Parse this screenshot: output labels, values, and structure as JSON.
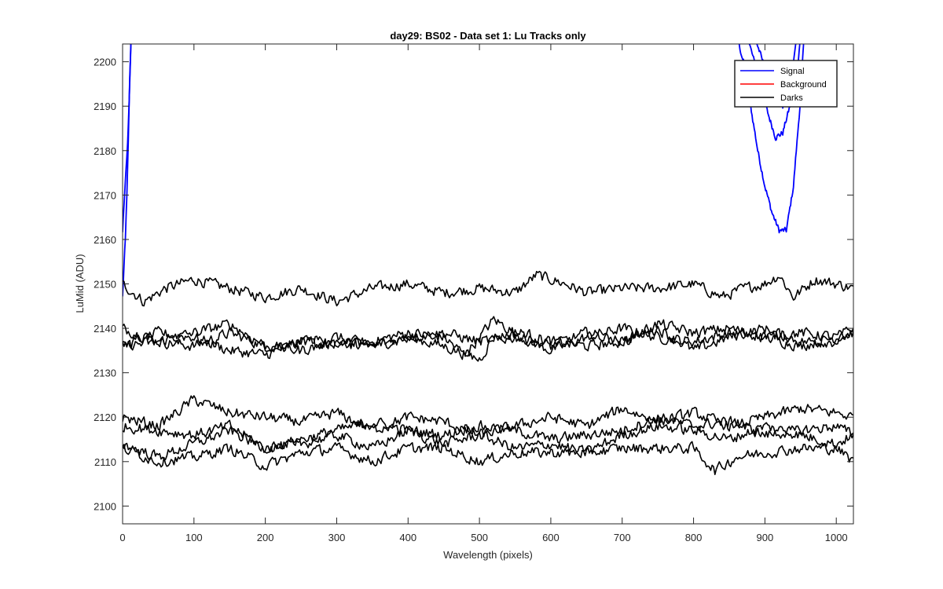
{
  "chart_data": {
    "type": "line",
    "title": "day29: BS02 - Data set 1: Lu Tracks only",
    "xlabel": "Wavelength (pixels)",
    "ylabel": "LuMid (ADU)",
    "xlim": [
      0,
      1024
    ],
    "ylim": [
      2096,
      2204
    ],
    "xticks": [
      0,
      100,
      200,
      300,
      400,
      500,
      600,
      700,
      800,
      900,
      1000
    ],
    "yticks": [
      2100,
      2110,
      2120,
      2130,
      2140,
      2150,
      2160,
      2170,
      2180,
      2190,
      2200
    ],
    "grid": false,
    "legend_position": "top-right",
    "legend": [
      {
        "name": "Signal",
        "color": "#0000ff"
      },
      {
        "name": "Background",
        "color": "#ff0000"
      },
      {
        "name": "Darks",
        "color": "#000000"
      }
    ],
    "series": [
      {
        "name": "Signal",
        "color": "#0000ff",
        "x": [
          0,
          2,
          4,
          6,
          8,
          10,
          12
        ],
        "y": [
          2147,
          2154,
          2160,
          2170,
          2182,
          2196,
          2206
        ]
      },
      {
        "name": "Signal",
        "color": "#0000ff",
        "x": [
          0,
          3,
          6,
          9,
          12
        ],
        "y": [
          2162,
          2171,
          2178,
          2190,
          2206
        ]
      },
      {
        "name": "Signal",
        "color": "#0000ff",
        "x": [
          860,
          870,
          880,
          890,
          900,
          910,
          920,
          930,
          940,
          950,
          955
        ],
        "y": [
          2206,
          2200,
          2190,
          2180,
          2172,
          2166,
          2162,
          2162,
          2172,
          2192,
          2206
        ]
      },
      {
        "name": "Signal",
        "color": "#0000ff",
        "x": [
          875,
          885,
          895,
          905,
          915,
          925,
          935,
          945,
          950
        ],
        "y": [
          2206,
          2200,
          2193,
          2188,
          2183,
          2184,
          2190,
          2198,
          2206
        ]
      },
      {
        "name": "Signal",
        "color": "#0000ff",
        "x": [
          885,
          895,
          905,
          915,
          925,
          935,
          945
        ],
        "y": [
          2206,
          2201,
          2196,
          2192,
          2190,
          2193,
          2206
        ]
      },
      {
        "name": "Darks",
        "color": "#000000",
        "x": [
          0,
          30,
          60,
          100,
          150,
          200,
          250,
          300,
          350,
          400,
          450,
          500,
          550,
          580,
          620,
          650,
          700,
          750,
          800,
          840,
          870,
          900,
          920,
          940,
          970,
          1000,
          1024
        ],
        "y": [
          2150,
          2146,
          2149,
          2151,
          2149,
          2147,
          2149,
          2146,
          2149,
          2150,
          2148,
          2149,
          2148,
          2152,
          2150,
          2148,
          2149,
          2149,
          2150,
          2147,
          2149,
          2150,
          2152,
          2147,
          2151,
          2150,
          2149
        ]
      },
      {
        "name": "Darks",
        "color": "#000000",
        "x": [
          0,
          50,
          100,
          150,
          200,
          250,
          300,
          350,
          400,
          450,
          480,
          520,
          560,
          600,
          650,
          700,
          750,
          800,
          850,
          900,
          950,
          1000,
          1024
        ],
        "y": [
          2140,
          2137,
          2136,
          2139,
          2136,
          2137,
          2136,
          2137,
          2139,
          2138,
          2134,
          2142,
          2138,
          2135,
          2138,
          2140,
          2138,
          2137,
          2139,
          2138,
          2136,
          2138,
          2139
        ]
      },
      {
        "name": "Darks",
        "color": "#000000",
        "x": [
          0,
          50,
          100,
          150,
          200,
          250,
          300,
          350,
          400,
          450,
          500,
          520,
          560,
          600,
          650,
          700,
          750,
          800,
          850,
          900,
          950,
          1000,
          1024
        ],
        "y": [
          2136,
          2139,
          2138,
          2135,
          2134,
          2137,
          2138,
          2136,
          2138,
          2136,
          2133,
          2138,
          2139,
          2137,
          2136,
          2137,
          2140,
          2135,
          2138,
          2140,
          2137,
          2137,
          2139
        ]
      },
      {
        "name": "Darks",
        "color": "#000000",
        "x": [
          0,
          50,
          100,
          150,
          200,
          250,
          300,
          350,
          400,
          450,
          500,
          550,
          600,
          650,
          700,
          750,
          800,
          850,
          900,
          950,
          1000,
          1024
        ],
        "y": [
          2136,
          2137,
          2139,
          2141,
          2136,
          2135,
          2137,
          2136,
          2138,
          2139,
          2137,
          2138,
          2136,
          2139,
          2137,
          2141,
          2139,
          2140,
          2138,
          2139,
          2138,
          2140
        ]
      },
      {
        "name": "Darks",
        "color": "#000000",
        "x": [
          0,
          50,
          100,
          150,
          200,
          250,
          300,
          350,
          400,
          450,
          500,
          550,
          600,
          650,
          700,
          750,
          800,
          850,
          900,
          950,
          1000,
          1024
        ],
        "y": [
          2120,
          2118,
          2124,
          2121,
          2120,
          2119,
          2121,
          2117,
          2120,
          2119,
          2116,
          2118,
          2120,
          2118,
          2122,
          2119,
          2121,
          2118,
          2120,
          2122,
          2121,
          2120
        ]
      },
      {
        "name": "Darks",
        "color": "#000000",
        "x": [
          0,
          50,
          100,
          150,
          200,
          250,
          300,
          350,
          400,
          450,
          500,
          550,
          600,
          650,
          700,
          750,
          800,
          850,
          900,
          950,
          1000,
          1024
        ],
        "y": [
          2118,
          2117,
          2116,
          2118,
          2113,
          2115,
          2117,
          2119,
          2117,
          2116,
          2118,
          2117,
          2115,
          2116,
          2117,
          2120,
          2118,
          2119,
          2116,
          2117,
          2118,
          2116
        ]
      },
      {
        "name": "Darks",
        "color": "#000000",
        "x": [
          0,
          50,
          100,
          150,
          200,
          250,
          300,
          350,
          400,
          450,
          500,
          550,
          600,
          650,
          700,
          750,
          800,
          850,
          900,
          950,
          1000,
          1024
        ],
        "y": [
          2114,
          2111,
          2114,
          2117,
          2113,
          2114,
          2116,
          2113,
          2117,
          2114,
          2116,
          2113,
          2114,
          2112,
          2116,
          2118,
          2117,
          2115,
          2118,
          2116,
          2114,
          2116
        ]
      },
      {
        "name": "Darks",
        "color": "#000000",
        "x": [
          0,
          50,
          100,
          150,
          200,
          250,
          300,
          350,
          400,
          450,
          500,
          550,
          600,
          650,
          700,
          750,
          800,
          830,
          860,
          900,
          950,
          1000,
          1024
        ],
        "y": [
          2113,
          2110,
          2111,
          2113,
          2109,
          2112,
          2113,
          2110,
          2113,
          2113,
          2110,
          2112,
          2112,
          2112,
          2113,
          2113,
          2113,
          2108,
          2111,
          2112,
          2113,
          2113,
          2110
        ]
      }
    ]
  }
}
